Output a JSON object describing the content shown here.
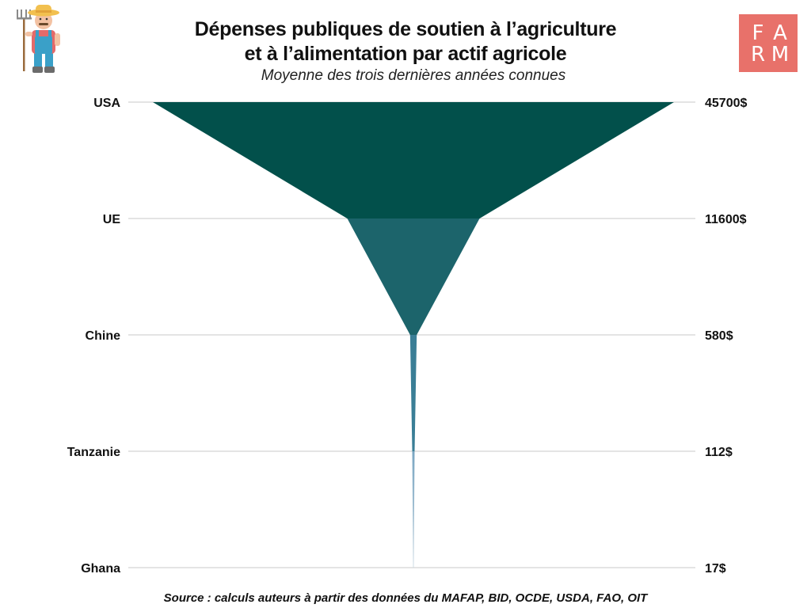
{
  "header": {
    "title_line1": "Dépenses publiques de soutien à l’agriculture",
    "title_line2": "et à l’alimentation par actif agricole",
    "subtitle": "Moyenne des trois dernières années connues"
  },
  "logo": {
    "letters": [
      "F",
      "A",
      "R",
      "M"
    ],
    "background": "#e8716a",
    "icon": "farm-logo"
  },
  "illustration": {
    "icon": "farmer-with-pitchfork-icon"
  },
  "footer": {
    "source": "Source : calculs auteurs à partir des données du MAFAP, BID, OCDE, USDA, FAO, OIT"
  },
  "chart_data": {
    "type": "funnel",
    "categories": [
      "USA",
      "UE",
      "Chine",
      "Tanzanie",
      "Ghana"
    ],
    "values": [
      45700,
      11600,
      580,
      112,
      17
    ],
    "value_labels": [
      "45700$",
      "11600$",
      "580$",
      "112$",
      "17$"
    ],
    "colors": [
      "#02504b",
      "#1c646b",
      "#3a7e96",
      "#7aa6c2",
      "#c9d8e2"
    ],
    "grid": true
  }
}
